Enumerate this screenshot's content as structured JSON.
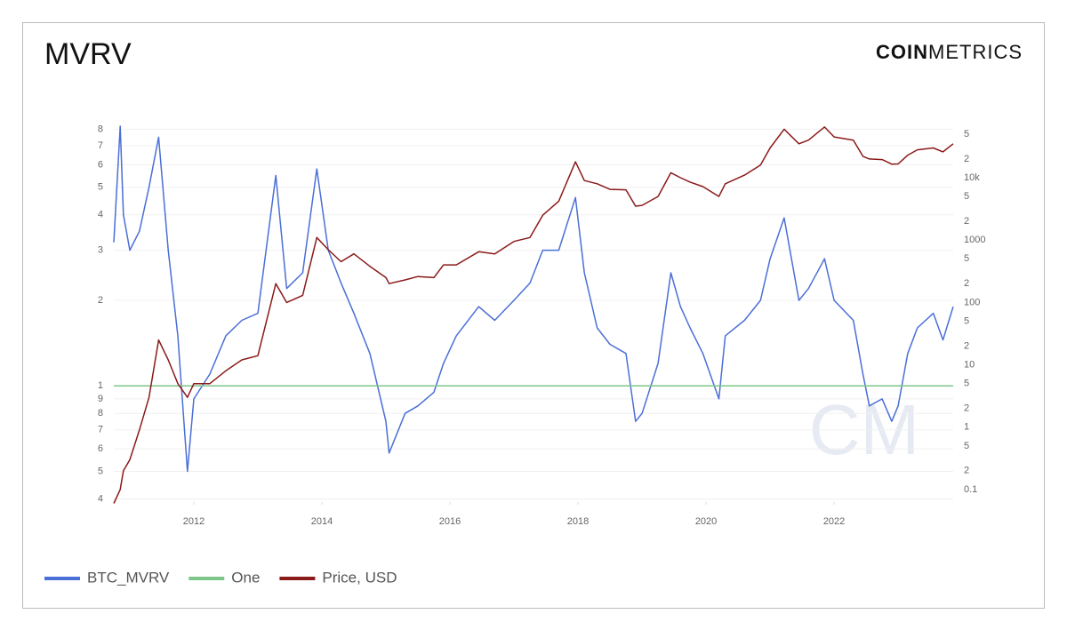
{
  "chart_data": {
    "type": "line",
    "title": "MVRV",
    "logo": {
      "bold": "COIN",
      "light": "METRICS"
    },
    "watermark": "CM",
    "log_scale": true,
    "grid": true,
    "legend": "bottom-left",
    "xlim": [
      2010.75,
      2023.86
    ],
    "xticks": [
      2012,
      2014,
      2016,
      2018,
      2020,
      2022
    ],
    "ylim": [
      0.39,
      8.2
    ],
    "yticks": [
      8,
      7,
      6,
      5,
      4,
      3,
      2,
      1,
      {
        "value": 0.9,
        "label": "9"
      },
      {
        "value": 0.8,
        "label": "8"
      },
      {
        "value": 0.7,
        "label": "7"
      },
      {
        "value": 0.6,
        "label": "6"
      },
      {
        "value": 0.5,
        "label": "5"
      },
      {
        "value": 0.4,
        "label": "4"
      }
    ],
    "y2lim": [
      0.063,
      67000
    ],
    "y2ticks": [
      {
        "value": 50000,
        "label": "5"
      },
      {
        "value": 20000,
        "label": "2"
      },
      {
        "value": 10000,
        "label": "10k"
      },
      {
        "value": 5000,
        "label": "5"
      },
      {
        "value": 2000,
        "label": "2"
      },
      1000,
      {
        "value": 500,
        "label": "5"
      },
      {
        "value": 200,
        "label": "2"
      },
      100,
      {
        "value": 50,
        "label": "5"
      },
      {
        "value": 20,
        "label": "2"
      },
      10,
      {
        "value": 5,
        "label": "5"
      },
      {
        "value": 2,
        "label": "2"
      },
      1,
      {
        "value": 0.5,
        "label": "5"
      },
      {
        "value": 0.2,
        "label": "2"
      },
      0.1
    ],
    "x": [
      2010.75,
      2010.85,
      2010.9,
      2011.0,
      2011.15,
      2011.3,
      2011.45,
      2011.6,
      2011.75,
      2011.9,
      2012.0,
      2012.25,
      2012.5,
      2012.75,
      2013.0,
      2013.28,
      2013.45,
      2013.7,
      2013.92,
      2014.1,
      2014.3,
      2014.5,
      2014.75,
      2015.0,
      2015.05,
      2015.3,
      2015.5,
      2015.75,
      2015.9,
      2016.1,
      2016.45,
      2016.7,
      2017.0,
      2017.25,
      2017.45,
      2017.7,
      2017.96,
      2018.1,
      2018.3,
      2018.5,
      2018.75,
      2018.9,
      2019.0,
      2019.25,
      2019.45,
      2019.6,
      2019.75,
      2019.95,
      2020.2,
      2020.3,
      2020.6,
      2020.85,
      2021.0,
      2021.22,
      2021.45,
      2021.6,
      2021.85,
      2022.0,
      2022.3,
      2022.45,
      2022.55,
      2022.75,
      2022.9,
      2023.0,
      2023.15,
      2023.3,
      2023.55,
      2023.7,
      2023.86
    ],
    "series": [
      {
        "name": "BTC_MVRV",
        "color": "#4a6fd6",
        "axis": "y",
        "values": [
          3.2,
          8.2,
          4.0,
          3.0,
          3.5,
          5.0,
          7.5,
          3.0,
          1.5,
          0.5,
          0.9,
          1.1,
          1.5,
          1.7,
          1.8,
          5.5,
          2.2,
          2.5,
          5.8,
          3.0,
          2.3,
          1.8,
          1.3,
          0.75,
          0.58,
          0.8,
          0.85,
          0.95,
          1.2,
          1.5,
          1.9,
          1.7,
          2.0,
          2.3,
          3.0,
          3.0,
          4.6,
          2.5,
          1.6,
          1.4,
          1.3,
          0.75,
          0.8,
          1.2,
          2.5,
          1.9,
          1.6,
          1.3,
          0.9,
          1.5,
          1.7,
          2.0,
          2.8,
          3.9,
          2.0,
          2.2,
          2.8,
          2.0,
          1.7,
          1.1,
          0.85,
          0.9,
          0.75,
          0.85,
          1.3,
          1.6,
          1.8,
          1.45,
          1.9
        ]
      },
      {
        "name": "One",
        "color": "#7cc68a",
        "axis": "y",
        "x": [
          2010.75,
          2023.86
        ],
        "values": [
          1,
          1
        ]
      },
      {
        "name": "Price, USD",
        "color": "#8b1a1a",
        "axis": "y2",
        "values": [
          0.06,
          0.1,
          0.2,
          0.3,
          0.9,
          3,
          25,
          12,
          5,
          3,
          5,
          5,
          8,
          12,
          14,
          200,
          100,
          130,
          1100,
          700,
          450,
          600,
          380,
          250,
          200,
          230,
          260,
          250,
          400,
          400,
          650,
          600,
          950,
          1100,
          2500,
          4200,
          18000,
          9000,
          8000,
          6500,
          6400,
          3500,
          3600,
          5000,
          12000,
          10000,
          8500,
          7200,
          5000,
          8000,
          11000,
          16000,
          30000,
          60000,
          35000,
          40000,
          65000,
          45000,
          40000,
          22000,
          20000,
          19500,
          16500,
          16600,
          23000,
          28000,
          30000,
          26000,
          35000
        ]
      }
    ]
  }
}
